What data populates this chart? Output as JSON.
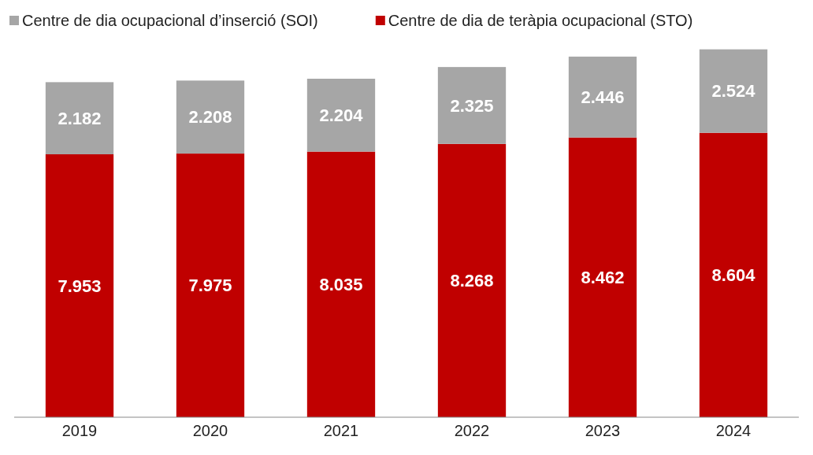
{
  "chart_data": {
    "type": "bar",
    "stacked": true,
    "legend": "top",
    "categories": [
      "2019",
      "2020",
      "2021",
      "2022",
      "2023",
      "2024"
    ],
    "series": [
      {
        "name": "Centre de dia de teràpia ocupacional (STO)",
        "color": "#c00000",
        "values": [
          7953,
          7975,
          8035,
          8268,
          8462,
          8604
        ],
        "value_labels": [
          "7.953",
          "7.975",
          "8.035",
          "8.268",
          "8.462",
          "8.604"
        ]
      },
      {
        "name": "Centre de dia ocupacional d’inserció (SOI)",
        "color": "#a6a6a6",
        "values": [
          2182,
          2208,
          2204,
          2325,
          2446,
          2524
        ],
        "value_labels": [
          "2.182",
          "2.208",
          "2.204",
          "2.325",
          "2.446",
          "2.524"
        ]
      }
    ]
  }
}
